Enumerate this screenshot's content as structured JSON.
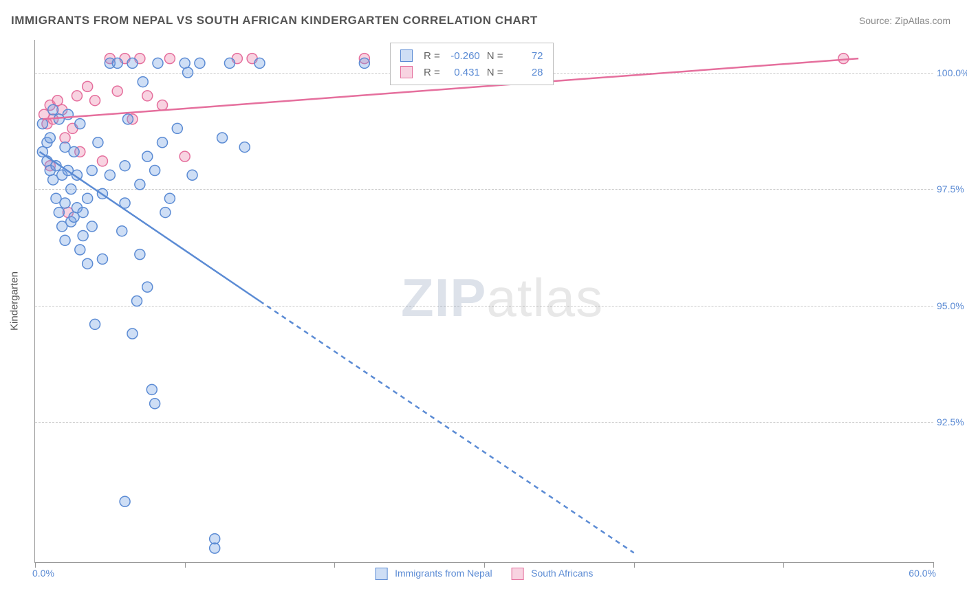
{
  "title": "IMMIGRANTS FROM NEPAL VS SOUTH AFRICAN KINDERGARTEN CORRELATION CHART",
  "source": "Source: ZipAtlas.com",
  "watermark": {
    "zip": "ZIP",
    "atlas": "atlas"
  },
  "chart": {
    "type": "scatter",
    "x_axis": {
      "min": 0.0,
      "max": 60.0,
      "min_label": "0.0%",
      "max_label": "60.0%",
      "ticks": [
        0,
        10,
        20,
        30,
        40,
        50,
        60
      ]
    },
    "y_axis": {
      "title": "Kindergarten",
      "min": 89.5,
      "max": 100.7,
      "gridlines": [
        92.5,
        95.0,
        97.5,
        100.0
      ],
      "labels": [
        "92.5%",
        "95.0%",
        "97.5%",
        "100.0%"
      ]
    },
    "background_color": "#ffffff",
    "grid_color": "#c8c8c8",
    "axis_color": "#999999",
    "point_radius": 7.5,
    "point_stroke_width": 1.5,
    "trend_line_width": 2.5,
    "series": [
      {
        "name": "Immigrants from Nepal",
        "fill_color": "rgba(115,160,225,0.35)",
        "stroke_color": "#5b8bd4",
        "R": "-0.260",
        "N": "72",
        "trend": {
          "solid": [
            [
              0.3,
              98.3
            ],
            [
              15,
              95.1
            ]
          ],
          "dashed": [
            [
              15,
              95.1
            ],
            [
              40,
              89.7
            ]
          ]
        },
        "points": [
          [
            0.5,
            98.9
          ],
          [
            0.5,
            98.3
          ],
          [
            0.8,
            98.1
          ],
          [
            0.8,
            98.5
          ],
          [
            1.0,
            97.9
          ],
          [
            1.0,
            98.6
          ],
          [
            1.2,
            97.7
          ],
          [
            1.2,
            99.2
          ],
          [
            1.4,
            98.0
          ],
          [
            1.4,
            97.3
          ],
          [
            1.6,
            99.0
          ],
          [
            1.6,
            97.0
          ],
          [
            1.8,
            97.8
          ],
          [
            1.8,
            96.7
          ],
          [
            2.0,
            98.4
          ],
          [
            2.0,
            97.2
          ],
          [
            2.0,
            96.4
          ],
          [
            2.2,
            97.9
          ],
          [
            2.2,
            99.1
          ],
          [
            2.4,
            97.5
          ],
          [
            2.4,
            96.8
          ],
          [
            2.6,
            98.3
          ],
          [
            2.6,
            96.9
          ],
          [
            2.8,
            97.1
          ],
          [
            2.8,
            97.8
          ],
          [
            3.0,
            96.2
          ],
          [
            3.0,
            98.9
          ],
          [
            3.2,
            97.0
          ],
          [
            3.2,
            96.5
          ],
          [
            3.5,
            97.3
          ],
          [
            3.5,
            95.9
          ],
          [
            3.8,
            96.7
          ],
          [
            3.8,
            97.9
          ],
          [
            4.0,
            94.6
          ],
          [
            4.2,
            98.5
          ],
          [
            4.5,
            97.4
          ],
          [
            4.5,
            96.0
          ],
          [
            5.0,
            97.8
          ],
          [
            5.0,
            100.2
          ],
          [
            5.5,
            100.2
          ],
          [
            5.8,
            96.6
          ],
          [
            6.0,
            98.0
          ],
          [
            6.0,
            97.2
          ],
          [
            6.2,
            99.0
          ],
          [
            6.5,
            94.4
          ],
          [
            6.5,
            100.2
          ],
          [
            6.8,
            95.1
          ],
          [
            7.0,
            96.1
          ],
          [
            7.0,
            97.6
          ],
          [
            7.2,
            99.8
          ],
          [
            7.5,
            98.2
          ],
          [
            7.5,
            95.4
          ],
          [
            7.8,
            93.2
          ],
          [
            8.0,
            97.9
          ],
          [
            8.0,
            92.9
          ],
          [
            8.2,
            100.2
          ],
          [
            8.5,
            98.5
          ],
          [
            8.7,
            97.0
          ],
          [
            9.0,
            97.3
          ],
          [
            9.5,
            98.8
          ],
          [
            10.0,
            100.2
          ],
          [
            10.2,
            100.0
          ],
          [
            10.5,
            97.8
          ],
          [
            11.0,
            100.2
          ],
          [
            12.0,
            90.0
          ],
          [
            12.0,
            89.8
          ],
          [
            12.5,
            98.6
          ],
          [
            13.0,
            100.2
          ],
          [
            14.0,
            98.4
          ],
          [
            15.0,
            100.2
          ],
          [
            22.0,
            100.2
          ],
          [
            6.0,
            90.8
          ]
        ]
      },
      {
        "name": "South Africans",
        "fill_color": "rgba(235,130,170,0.35)",
        "stroke_color": "#e56f9d",
        "R": "0.431",
        "N": "28",
        "trend": {
          "solid": [
            [
              0.5,
              99.0
            ],
            [
              55,
              100.3
            ]
          ],
          "dashed": null
        },
        "points": [
          [
            0.6,
            99.1
          ],
          [
            0.8,
            98.9
          ],
          [
            1.0,
            99.3
          ],
          [
            1.0,
            98.0
          ],
          [
            1.2,
            99.0
          ],
          [
            1.5,
            99.4
          ],
          [
            1.8,
            99.2
          ],
          [
            2.0,
            98.6
          ],
          [
            2.2,
            97.0
          ],
          [
            2.5,
            98.8
          ],
          [
            2.8,
            99.5
          ],
          [
            3.0,
            98.3
          ],
          [
            3.5,
            99.7
          ],
          [
            4.0,
            99.4
          ],
          [
            4.5,
            98.1
          ],
          [
            5.0,
            100.3
          ],
          [
            5.5,
            99.6
          ],
          [
            6.0,
            100.3
          ],
          [
            6.5,
            99.0
          ],
          [
            7.0,
            100.3
          ],
          [
            7.5,
            99.5
          ],
          [
            8.5,
            99.3
          ],
          [
            9.0,
            100.3
          ],
          [
            10.0,
            98.2
          ],
          [
            13.5,
            100.3
          ],
          [
            14.5,
            100.3
          ],
          [
            22.0,
            100.3
          ],
          [
            54.0,
            100.3
          ]
        ]
      }
    ],
    "legend": {
      "position": "bottom-center",
      "items": [
        {
          "label": "Immigrants from Nepal",
          "fill": "rgba(115,160,225,0.35)",
          "stroke": "#5b8bd4"
        },
        {
          "label": "South Africans",
          "fill": "rgba(235,130,170,0.35)",
          "stroke": "#e56f9d"
        }
      ]
    },
    "stats_box": {
      "r_label": "R =",
      "n_label": "N ="
    }
  }
}
